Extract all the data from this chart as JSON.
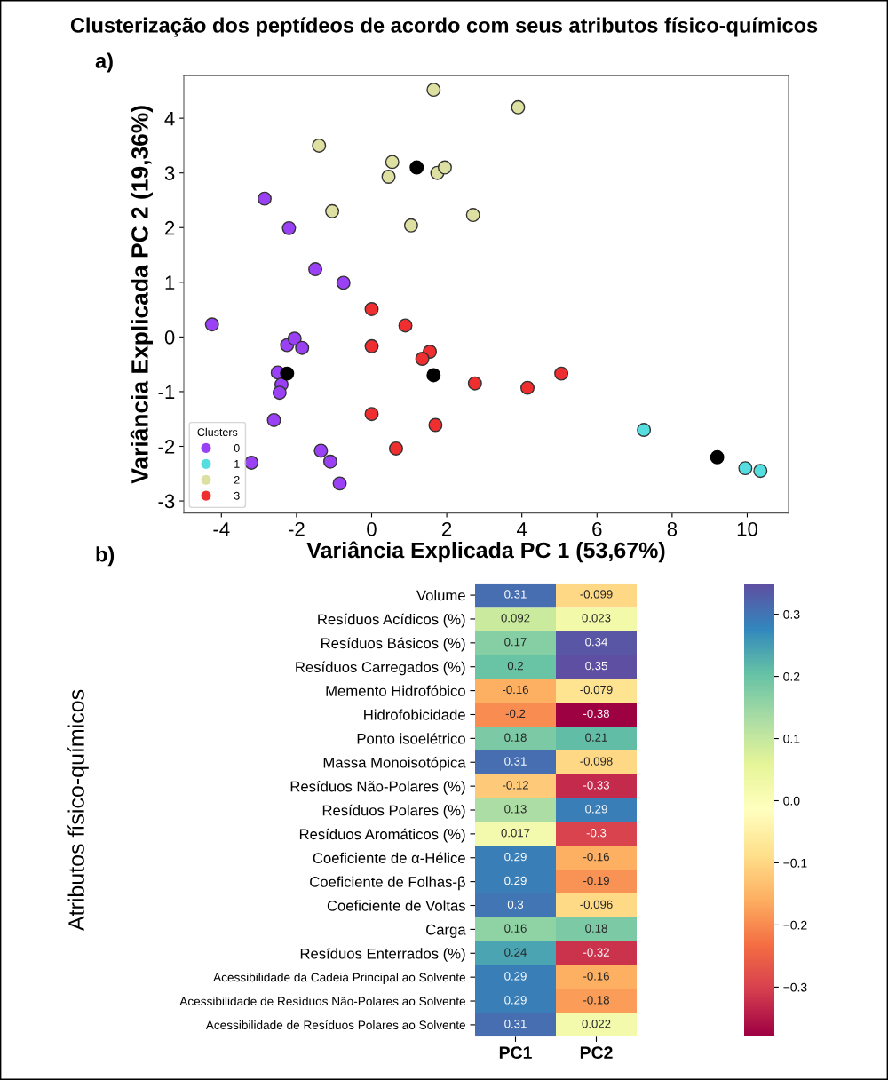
{
  "chart_data": [
    {
      "type": "scatter",
      "title": "Clusterização dos peptídeos de acordo com seus atributos físico-químicos",
      "annotations": [
        "a)"
      ],
      "xlabel": "Variância Explicada PC 1 (53,67%)",
      "ylabel": "Variância Explicada PC 2 (19,36%)",
      "legend_title": "Clusters",
      "legend": "bottom left",
      "marker": "circle",
      "grid": false,
      "xlim": [
        -5,
        11.1
      ],
      "ylim": [
        -3.22,
        4.78
      ],
      "xticks": [
        {
          "value": -4,
          "label": "-4"
        },
        {
          "value": -2,
          "label": "-2"
        },
        0,
        2,
        4,
        6,
        8,
        10
      ],
      "yticks": [
        {
          "value": -3,
          "label": "-3"
        },
        {
          "value": -2,
          "label": "-2"
        },
        {
          "value": -1,
          "label": "-1"
        },
        0,
        1,
        2,
        3,
        4
      ],
      "series": [
        {
          "name": "0",
          "color": "#9a40f5",
          "x": [
            -4.25,
            -2.85,
            -2.2,
            -1.5,
            -0.75,
            -2.25,
            -2.05,
            -1.85,
            -2.5,
            -2.4,
            -2.45,
            -2.6,
            -3.2,
            -1.35,
            -1.1,
            -0.85
          ],
          "values": [
            0.23,
            2.53,
            1.99,
            1.24,
            0.99,
            -0.15,
            -0.03,
            -0.2,
            -0.65,
            -0.87,
            -1.02,
            -1.52,
            -2.3,
            -2.08,
            -2.28,
            -2.68
          ]
        },
        {
          "name": "1",
          "color": "#55dde0",
          "x": [
            7.25,
            9.95,
            10.35
          ],
          "values": [
            -1.7,
            -2.4,
            -2.45
          ]
        },
        {
          "name": "2",
          "color": "#dde0a0",
          "x": [
            1.65,
            3.9,
            -1.4,
            0.55,
            0.45,
            1.75,
            1.95,
            -1.05,
            1.05,
            2.7
          ],
          "values": [
            4.52,
            4.2,
            3.5,
            3.2,
            2.93,
            3.0,
            3.1,
            2.3,
            2.04,
            2.23
          ]
        },
        {
          "name": "3",
          "color": "#ef2f2f",
          "x": [
            0,
            0.9,
            0,
            1.55,
            1.35,
            2.75,
            4.15,
            5.05,
            0,
            1.7,
            0.65
          ],
          "values": [
            0.51,
            0.21,
            -0.17,
            -0.27,
            -0.4,
            -0.85,
            -0.93,
            -0.67,
            -1.41,
            -1.61,
            -2.04
          ]
        },
        {
          "color": "#000000",
          "x": [
            1.2,
            -2.25,
            1.65,
            9.2
          ],
          "values": [
            3.1,
            -0.67,
            -0.7,
            -2.2
          ]
        }
      ]
    },
    {
      "type": "heatmap",
      "annotations": [
        "b)"
      ],
      "ylabel": "Atributos físico-químicos",
      "categories": [
        "PC1",
        "PC2"
      ],
      "y_categories": [
        "Volume",
        "Resíduos Acídicos (%)",
        "Resíduos Básicos (%)",
        "Resíduos Carregados (%)",
        "Memento Hidrofóbico",
        "Hidrofobicidade",
        "Ponto isoelétrico",
        "Massa Monoisotópica",
        "Resíduos Não-Polares (%)",
        "Resíduos Polares (%)",
        "Resíduos Aromáticos (%)",
        "Coeficiente de α-Hélice",
        "Coeficiente de Folhas-β",
        "Coeficiente de Voltas",
        "Carga",
        "Resíduos Enterrados (%)",
        "Acessibilidade da Cadeia Principal ao Solvente",
        "Acessibilidade de Resíduos Não-Polares ao Solvente",
        "Acessibilidade de Resíduos Polares ao Solvente"
      ],
      "cells": [
        [
          0.31,
          -0.099
        ],
        [
          0.092,
          0.023
        ],
        [
          0.17,
          0.34
        ],
        [
          0.2,
          0.35
        ],
        [
          -0.16,
          -0.079
        ],
        [
          -0.2,
          -0.38
        ],
        [
          0.18,
          0.21
        ],
        [
          0.31,
          -0.098
        ],
        [
          -0.12,
          -0.33
        ],
        [
          0.13,
          0.29
        ],
        [
          0.017,
          -0.3
        ],
        [
          0.29,
          -0.16
        ],
        [
          0.29,
          -0.19
        ],
        [
          0.3,
          -0.096
        ],
        [
          0.16,
          0.18
        ],
        [
          0.24,
          -0.32
        ],
        [
          0.29,
          -0.16
        ],
        [
          0.29,
          -0.18
        ],
        [
          0.31,
          0.022
        ]
      ],
      "data_labels": true,
      "clim": [
        -0.38,
        0.35
      ],
      "cticks": [
        {
          "value": -0.3,
          "label": "−0.3"
        },
        {
          "value": -0.2,
          "label": "−0.2"
        },
        {
          "value": -0.1,
          "label": "−0.1"
        },
        {
          "value": 0,
          "label": "0.0"
        },
        0.1,
        0.2,
        0.3
      ]
    }
  ]
}
